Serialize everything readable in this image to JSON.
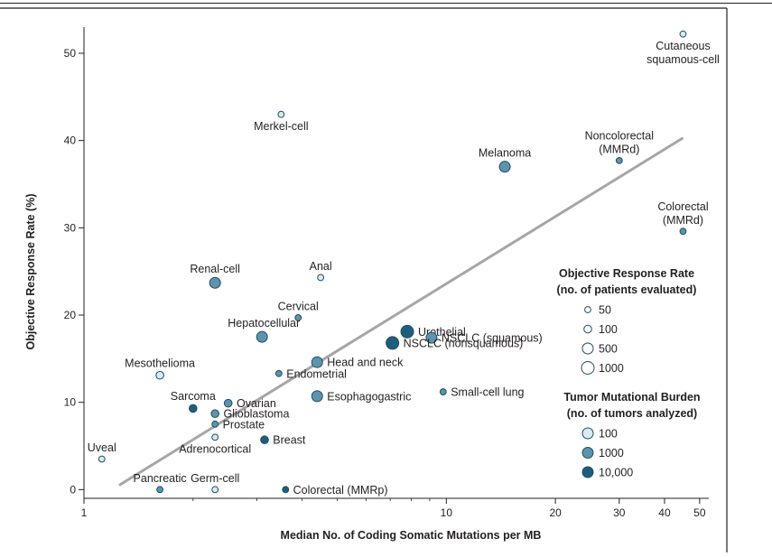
{
  "chart_data": {
    "type": "scatter",
    "title": "",
    "xlabel": "Median No. of Coding Somatic Mutations per MB",
    "ylabel": "Objective Response Rate (%)",
    "x_scale": "log",
    "xlim": [
      1,
      53
    ],
    "ylim": [
      -1,
      53
    ],
    "x_ticks": [
      {
        "value": 1,
        "label": "1"
      },
      {
        "value": 10,
        "label": "10"
      },
      {
        "value": 20,
        "label": "20"
      },
      {
        "value": 30,
        "label": "30"
      },
      {
        "value": 40,
        "label": "40"
      },
      {
        "value": 50,
        "label": "50"
      }
    ],
    "y_ticks": [
      {
        "value": 0,
        "label": "0"
      },
      {
        "value": 10,
        "label": "10"
      },
      {
        "value": 20,
        "label": "20"
      },
      {
        "value": 30,
        "label": "30"
      },
      {
        "value": 40,
        "label": "40"
      },
      {
        "value": 50,
        "label": "50"
      }
    ],
    "trend_line": {
      "x": [
        1.25,
        45
      ],
      "y": [
        0.5,
        40.3
      ]
    },
    "points": [
      {
        "name": "Cutaneous squamous-cell",
        "lines": [
          "Cutaneous",
          "squamous-cell"
        ],
        "x": 45,
        "y": 52.2,
        "patients": 50,
        "tumors": 100,
        "label_pos": "below"
      },
      {
        "name": "Merkel-cell",
        "lines": [
          "Merkel-cell"
        ],
        "x": 3.5,
        "y": 43,
        "patients": 50,
        "tumors": 100,
        "label_pos": "below"
      },
      {
        "name": "Melanoma",
        "lines": [
          "Melanoma"
        ],
        "x": 14.5,
        "y": 37,
        "patients": 500,
        "tumors": 1000,
        "label_pos": "above"
      },
      {
        "name": "Noncolorectal (MMRd)",
        "lines": [
          "Noncolorectal",
          "(MMRd)"
        ],
        "x": 30,
        "y": 37.7,
        "patients": 50,
        "tumors": 1000,
        "label_pos": "above"
      },
      {
        "name": "Colorectal (MMRd)",
        "lines": [
          "Colorectal",
          "(MMRd)"
        ],
        "x": 45,
        "y": 29.6,
        "patients": 50,
        "tumors": 1000,
        "label_pos": "above"
      },
      {
        "name": "Renal-cell",
        "lines": [
          "Renal-cell"
        ],
        "x": 2.3,
        "y": 23.7,
        "patients": 500,
        "tumors": 1000,
        "label_pos": "above"
      },
      {
        "name": "Anal",
        "lines": [
          "Anal"
        ],
        "x": 4.5,
        "y": 24.3,
        "patients": 50,
        "tumors": 100,
        "label_pos": "above"
      },
      {
        "name": "Cervical",
        "lines": [
          "Cervical"
        ],
        "x": 3.9,
        "y": 19.7,
        "patients": 50,
        "tumors": 1000,
        "label_pos": "above"
      },
      {
        "name": "Hepatocellular",
        "lines": [
          "Hepatocellular"
        ],
        "x": 3.1,
        "y": 17.5,
        "patients": 500,
        "tumors": 1000,
        "label_pos": "above-left"
      },
      {
        "name": "Urothelial",
        "lines": [
          "Urothelial"
        ],
        "x": 7.8,
        "y": 18.1,
        "patients": 1000,
        "tumors": 10000,
        "label_pos": "right"
      },
      {
        "name": "NSCLC (squamous)",
        "lines": [
          "NSCLC (squamous)"
        ],
        "x": 9.1,
        "y": 17.4,
        "patients": 500,
        "tumors": 1000,
        "label_pos": "right"
      },
      {
        "name": "NSCLC (nonsquamous)",
        "lines": [
          "NSCLC (nonsquamous)"
        ],
        "x": 7.1,
        "y": 16.8,
        "patients": 1000,
        "tumors": 10000,
        "label_pos": "right"
      },
      {
        "name": "Head and neck",
        "lines": [
          "Head and neck"
        ],
        "x": 4.4,
        "y": 14.6,
        "patients": 500,
        "tumors": 1000,
        "label_pos": "right"
      },
      {
        "name": "Endometrial",
        "lines": [
          "Endometrial"
        ],
        "x": 3.45,
        "y": 13.3,
        "patients": 50,
        "tumors": 1000,
        "label_pos": "right"
      },
      {
        "name": "Mesothelioma",
        "lines": [
          "Mesothelioma"
        ],
        "x": 1.62,
        "y": 13.1,
        "patients": 100,
        "tumors": 100,
        "label_pos": "above"
      },
      {
        "name": "Esophagogastric",
        "lines": [
          "Esophagogastric"
        ],
        "x": 4.4,
        "y": 10.7,
        "patients": 500,
        "tumors": 1000,
        "label_pos": "right"
      },
      {
        "name": "Small-cell lung",
        "lines": [
          "Small-cell lung"
        ],
        "x": 9.8,
        "y": 11.2,
        "patients": 50,
        "tumors": 1000,
        "label_pos": "right"
      },
      {
        "name": "Sarcoma",
        "lines": [
          "Sarcoma"
        ],
        "x": 2.0,
        "y": 9.3,
        "patients": 100,
        "tumors": 10000,
        "label_pos": "above"
      },
      {
        "name": "Ovarian",
        "lines": [
          "Ovarian"
        ],
        "x": 2.5,
        "y": 9.9,
        "patients": 100,
        "tumors": 1000,
        "label_pos": "right"
      },
      {
        "name": "Glioblastoma",
        "lines": [
          "Glioblastoma"
        ],
        "x": 2.3,
        "y": 8.7,
        "patients": 100,
        "tumors": 1000,
        "label_pos": "right"
      },
      {
        "name": "Prostate",
        "lines": [
          "Prostate"
        ],
        "x": 2.3,
        "y": 7.5,
        "patients": 50,
        "tumors": 1000,
        "label_pos": "right"
      },
      {
        "name": "Adrenocortical",
        "lines": [
          "Adrenocortical"
        ],
        "x": 2.3,
        "y": 6.0,
        "patients": 50,
        "tumors": 100,
        "label_pos": "below"
      },
      {
        "name": "Breast",
        "lines": [
          "Breast"
        ],
        "x": 3.15,
        "y": 5.7,
        "patients": 100,
        "tumors": 10000,
        "label_pos": "right"
      },
      {
        "name": "Uveal",
        "lines": [
          "Uveal"
        ],
        "x": 1.12,
        "y": 3.5,
        "patients": 50,
        "tumors": 100,
        "label_pos": "above"
      },
      {
        "name": "Pancreatic",
        "lines": [
          "Pancreatic"
        ],
        "x": 1.62,
        "y": 0,
        "patients": 50,
        "tumors": 1000,
        "label_pos": "above"
      },
      {
        "name": "Germ-cell",
        "lines": [
          "Germ-cell"
        ],
        "x": 2.3,
        "y": 0,
        "patients": 50,
        "tumors": 100,
        "label_pos": "above"
      },
      {
        "name": "Colorectal (MMRp)",
        "lines": [
          "Colorectal (MMRp)"
        ],
        "x": 3.6,
        "y": 0,
        "patients": 50,
        "tumors": 10000,
        "label_pos": "right"
      }
    ],
    "legend_size": {
      "title_lines": [
        "Objective Response Rate",
        "(no. of patients evaluated)"
      ],
      "entries": [
        {
          "value": 50,
          "label": "50"
        },
        {
          "value": 100,
          "label": "100"
        },
        {
          "value": 500,
          "label": "500"
        },
        {
          "value": 1000,
          "label": "1000"
        }
      ]
    },
    "legend_color": {
      "title_lines": [
        "Tumor Mutational Burden",
        "(no. of tumors analyzed)"
      ],
      "entries": [
        {
          "value": 100,
          "label": "100"
        },
        {
          "value": 1000,
          "label": "1000"
        },
        {
          "value": 10000,
          "label": "10,000"
        }
      ]
    },
    "colors": {
      "tumors_100": "#d8eaf3",
      "tumors_1000": "#5d93ad",
      "tumors_10000": "#1e5e7d",
      "stroke": "#1f4e64",
      "trend": "#a6a6a6",
      "axis": "#231f20"
    }
  }
}
